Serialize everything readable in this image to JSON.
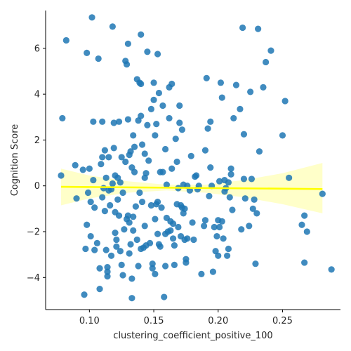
{
  "chart_data": {
    "type": "scatter",
    "title": "",
    "xlabel": "clustering_coefficient_positive_100",
    "ylabel": "Cognition Score",
    "xlim": [
      0.066,
      0.295
    ],
    "ylim": [
      -5.4,
      7.65
    ],
    "xticks": [
      "0.10",
      "0.15",
      "0.20",
      "0.25"
    ],
    "yticks": [
      "−4",
      "−2",
      "0",
      "2",
      "4",
      "6"
    ],
    "grid": false,
    "legend": "none",
    "colors": {
      "points": "#1f77b4",
      "regression_line": "#ffff00",
      "confidence_band": "#ffffc0"
    },
    "regression": {
      "x_start": 0.078,
      "y_start": -0.04,
      "x_end": 0.281,
      "y_end": -0.14
    },
    "confidence_band": {
      "x": [
        0.078,
        0.1,
        0.13,
        0.16,
        0.19,
        0.22,
        0.25,
        0.281
      ],
      "lower": [
        -0.85,
        -0.55,
        -0.3,
        -0.2,
        -0.3,
        -0.5,
        -0.8,
        -1.2
      ],
      "upper": [
        0.75,
        0.45,
        0.2,
        0.05,
        0.05,
        0.25,
        0.55,
        1.0
      ]
    },
    "points": [
      {
        "x": 0.078,
        "y": 0.45
      },
      {
        "x": 0.079,
        "y": 2.95
      },
      {
        "x": 0.082,
        "y": 6.35
      },
      {
        "x": 0.089,
        "y": 0.9
      },
      {
        "x": 0.09,
        "y": -0.55
      },
      {
        "x": 0.095,
        "y": 0.7
      },
      {
        "x": 0.096,
        "y": -4.75
      },
      {
        "x": 0.097,
        "y": -2.75
      },
      {
        "x": 0.098,
        "y": 5.8
      },
      {
        "x": 0.098,
        "y": -1.7
      },
      {
        "x": 0.099,
        "y": -0.3
      },
      {
        "x": 0.1,
        "y": 0.75
      },
      {
        "x": 0.101,
        "y": -2.2
      },
      {
        "x": 0.101,
        "y": -0.7
      },
      {
        "x": 0.102,
        "y": 7.35
      },
      {
        "x": 0.103,
        "y": 2.8
      },
      {
        "x": 0.103,
        "y": 0.25
      },
      {
        "x": 0.104,
        "y": -2.8
      },
      {
        "x": 0.104,
        "y": -0.95
      },
      {
        "x": 0.106,
        "y": -2.5
      },
      {
        "x": 0.107,
        "y": 5.55
      },
      {
        "x": 0.108,
        "y": -3.6
      },
      {
        "x": 0.108,
        "y": -4.5
      },
      {
        "x": 0.109,
        "y": 0.95
      },
      {
        "x": 0.11,
        "y": 1.25
      },
      {
        "x": 0.11,
        "y": -0.5
      },
      {
        "x": 0.11,
        "y": 2.8
      },
      {
        "x": 0.111,
        "y": -0.1
      },
      {
        "x": 0.112,
        "y": 1.55
      },
      {
        "x": 0.112,
        "y": -1.1
      },
      {
        "x": 0.113,
        "y": -2.8
      },
      {
        "x": 0.113,
        "y": 0.35
      },
      {
        "x": 0.114,
        "y": -3.55
      },
      {
        "x": 0.114,
        "y": -3.75
      },
      {
        "x": 0.114,
        "y": -3.95
      },
      {
        "x": 0.115,
        "y": 1.25
      },
      {
        "x": 0.115,
        "y": -0.2
      },
      {
        "x": 0.116,
        "y": -0.85
      },
      {
        "x": 0.117,
        "y": -0.15
      },
      {
        "x": 0.117,
        "y": -3.05
      },
      {
        "x": 0.118,
        "y": 6.95
      },
      {
        "x": 0.118,
        "y": 0.1
      },
      {
        "x": 0.119,
        "y": 1.65
      },
      {
        "x": 0.119,
        "y": 2.75
      },
      {
        "x": 0.12,
        "y": -2.05
      },
      {
        "x": 0.12,
        "y": -1.15
      },
      {
        "x": 0.12,
        "y": 0.45
      },
      {
        "x": 0.121,
        "y": -2.35
      },
      {
        "x": 0.121,
        "y": -2.65
      },
      {
        "x": 0.122,
        "y": -0.6
      },
      {
        "x": 0.122,
        "y": 0.35
      },
      {
        "x": 0.123,
        "y": 2.8
      },
      {
        "x": 0.123,
        "y": -1.3
      },
      {
        "x": 0.124,
        "y": -2.85
      },
      {
        "x": 0.124,
        "y": 0.15
      },
      {
        "x": 0.125,
        "y": 1.25
      },
      {
        "x": 0.125,
        "y": -3.45
      },
      {
        "x": 0.126,
        "y": -3.9
      },
      {
        "x": 0.126,
        "y": -0.3
      },
      {
        "x": 0.127,
        "y": -1.9
      },
      {
        "x": 0.128,
        "y": 5.45
      },
      {
        "x": 0.128,
        "y": 1.05
      },
      {
        "x": 0.129,
        "y": -1.45
      },
      {
        "x": 0.129,
        "y": 5.3
      },
      {
        "x": 0.13,
        "y": -1.3
      },
      {
        "x": 0.13,
        "y": 6.2
      },
      {
        "x": 0.13,
        "y": 2.9
      },
      {
        "x": 0.131,
        "y": -2.95
      },
      {
        "x": 0.131,
        "y": 1.35
      },
      {
        "x": 0.131,
        "y": -1.6
      },
      {
        "x": 0.132,
        "y": 1.5
      },
      {
        "x": 0.132,
        "y": -2.55
      },
      {
        "x": 0.133,
        "y": -4.9
      },
      {
        "x": 0.133,
        "y": -4.05
      },
      {
        "x": 0.133,
        "y": 0.8
      },
      {
        "x": 0.134,
        "y": 2.2
      },
      {
        "x": 0.134,
        "y": -1.95
      },
      {
        "x": 0.134,
        "y": -1.35
      },
      {
        "x": 0.135,
        "y": 0.6
      },
      {
        "x": 0.135,
        "y": 1.7
      },
      {
        "x": 0.136,
        "y": -0.9
      },
      {
        "x": 0.137,
        "y": 4.65
      },
      {
        "x": 0.137,
        "y": -2.35
      },
      {
        "x": 0.138,
        "y": 2.85
      },
      {
        "x": 0.138,
        "y": -3.5
      },
      {
        "x": 0.139,
        "y": 4.5
      },
      {
        "x": 0.139,
        "y": -0.3
      },
      {
        "x": 0.14,
        "y": 6.6
      },
      {
        "x": 0.14,
        "y": 3.05
      },
      {
        "x": 0.14,
        "y": -2.75
      },
      {
        "x": 0.14,
        "y": 4.45
      },
      {
        "x": 0.141,
        "y": 1.8
      },
      {
        "x": 0.141,
        "y": -0.7
      },
      {
        "x": 0.142,
        "y": -2.7
      },
      {
        "x": 0.143,
        "y": 0.35
      },
      {
        "x": 0.143,
        "y": 1.4
      },
      {
        "x": 0.143,
        "y": -1.75
      },
      {
        "x": 0.144,
        "y": 0.55
      },
      {
        "x": 0.144,
        "y": -2.6
      },
      {
        "x": 0.145,
        "y": 5.85
      },
      {
        "x": 0.145,
        "y": 2.65
      },
      {
        "x": 0.146,
        "y": 1.1
      },
      {
        "x": 0.147,
        "y": -2.5
      },
      {
        "x": 0.148,
        "y": 3.35
      },
      {
        "x": 0.148,
        "y": -0.85
      },
      {
        "x": 0.149,
        "y": -3.6
      },
      {
        "x": 0.149,
        "y": -3.4
      },
      {
        "x": 0.15,
        "y": 4.5
      },
      {
        "x": 0.15,
        "y": 3.75
      },
      {
        "x": 0.151,
        "y": 2.2
      },
      {
        "x": 0.151,
        "y": -1.45
      },
      {
        "x": 0.151,
        "y": -3.85
      },
      {
        "x": 0.152,
        "y": -0.8
      },
      {
        "x": 0.152,
        "y": 2.7
      },
      {
        "x": 0.153,
        "y": 5.75
      },
      {
        "x": 0.153,
        "y": -2.1
      },
      {
        "x": 0.153,
        "y": -0.7
      },
      {
        "x": 0.154,
        "y": 4.05
      },
      {
        "x": 0.154,
        "y": -2.55
      },
      {
        "x": 0.155,
        "y": 0.6
      },
      {
        "x": 0.155,
        "y": -2.65
      },
      {
        "x": 0.156,
        "y": -0.95
      },
      {
        "x": 0.157,
        "y": 3.5
      },
      {
        "x": 0.157,
        "y": 0.6
      },
      {
        "x": 0.158,
        "y": -4.85
      },
      {
        "x": 0.159,
        "y": 1.6
      },
      {
        "x": 0.159,
        "y": -2.1
      },
      {
        "x": 0.159,
        "y": -3.5
      },
      {
        "x": 0.16,
        "y": 0.05
      },
      {
        "x": 0.16,
        "y": -1.4
      },
      {
        "x": 0.161,
        "y": -2.0
      },
      {
        "x": 0.162,
        "y": 2.95
      },
      {
        "x": 0.162,
        "y": 4.3
      },
      {
        "x": 0.163,
        "y": -1.95
      },
      {
        "x": 0.163,
        "y": -1.55
      },
      {
        "x": 0.164,
        "y": 4.45
      },
      {
        "x": 0.164,
        "y": 0.75
      },
      {
        "x": 0.165,
        "y": -2.3
      },
      {
        "x": 0.165,
        "y": -1.65
      },
      {
        "x": 0.166,
        "y": -2.6
      },
      {
        "x": 0.166,
        "y": -3.45
      },
      {
        "x": 0.167,
        "y": 2.05
      },
      {
        "x": 0.168,
        "y": 1.05
      },
      {
        "x": 0.168,
        "y": -0.8
      },
      {
        "x": 0.169,
        "y": -1.8
      },
      {
        "x": 0.169,
        "y": -0.1
      },
      {
        "x": 0.17,
        "y": 2.75
      },
      {
        "x": 0.17,
        "y": 3.5
      },
      {
        "x": 0.171,
        "y": -0.85
      },
      {
        "x": 0.171,
        "y": -2.2
      },
      {
        "x": 0.172,
        "y": 2.45
      },
      {
        "x": 0.172,
        "y": -0.95
      },
      {
        "x": 0.173,
        "y": -1.2
      },
      {
        "x": 0.173,
        "y": 0.05
      },
      {
        "x": 0.174,
        "y": -1.0
      },
      {
        "x": 0.174,
        "y": -2.35
      },
      {
        "x": 0.175,
        "y": -3.35
      },
      {
        "x": 0.175,
        "y": -3.2
      },
      {
        "x": 0.176,
        "y": -2.3
      },
      {
        "x": 0.176,
        "y": 0.0
      },
      {
        "x": 0.178,
        "y": -0.2
      },
      {
        "x": 0.179,
        "y": 1.3
      },
      {
        "x": 0.18,
        "y": -1.6
      },
      {
        "x": 0.181,
        "y": -2.35
      },
      {
        "x": 0.182,
        "y": 0.4
      },
      {
        "x": 0.183,
        "y": 0.45
      },
      {
        "x": 0.184,
        "y": -0.15
      },
      {
        "x": 0.185,
        "y": 0.0
      },
      {
        "x": 0.187,
        "y": -3.85
      },
      {
        "x": 0.189,
        "y": -1.75
      },
      {
        "x": 0.19,
        "y": 1.55
      },
      {
        "x": 0.19,
        "y": -1.5
      },
      {
        "x": 0.191,
        "y": 4.7
      },
      {
        "x": 0.192,
        "y": 2.5
      },
      {
        "x": 0.193,
        "y": -0.45
      },
      {
        "x": 0.194,
        "y": 0.8
      },
      {
        "x": 0.194,
        "y": 2.8
      },
      {
        "x": 0.195,
        "y": 0.0
      },
      {
        "x": 0.196,
        "y": -3.75
      },
      {
        "x": 0.197,
        "y": -1.8
      },
      {
        "x": 0.198,
        "y": -2.85
      },
      {
        "x": 0.199,
        "y": -2.2
      },
      {
        "x": 0.2,
        "y": -1.5
      },
      {
        "x": 0.2,
        "y": -3.05
      },
      {
        "x": 0.201,
        "y": 0.2
      },
      {
        "x": 0.201,
        "y": -1.8
      },
      {
        "x": 0.202,
        "y": 4.5
      },
      {
        "x": 0.203,
        "y": 3.85
      },
      {
        "x": 0.203,
        "y": -1.55
      },
      {
        "x": 0.204,
        "y": -2.3
      },
      {
        "x": 0.205,
        "y": 0.25
      },
      {
        "x": 0.205,
        "y": -0.25
      },
      {
        "x": 0.206,
        "y": -0.1
      },
      {
        "x": 0.207,
        "y": -3.05
      },
      {
        "x": 0.208,
        "y": 0.15
      },
      {
        "x": 0.208,
        "y": -2.75
      },
      {
        "x": 0.209,
        "y": -0.5
      },
      {
        "x": 0.21,
        "y": 0.5
      },
      {
        "x": 0.21,
        "y": 0.75
      },
      {
        "x": 0.211,
        "y": -1.05
      },
      {
        "x": 0.212,
        "y": 2.95
      },
      {
        "x": 0.214,
        "y": 4.4
      },
      {
        "x": 0.217,
        "y": 3.35
      },
      {
        "x": 0.218,
        "y": -1.9
      },
      {
        "x": 0.219,
        "y": 6.9
      },
      {
        "x": 0.22,
        "y": 2.25
      },
      {
        "x": 0.22,
        "y": 0.3
      },
      {
        "x": 0.221,
        "y": -0.55
      },
      {
        "x": 0.224,
        "y": -1.75
      },
      {
        "x": 0.225,
        "y": 4.1
      },
      {
        "x": 0.226,
        "y": 0.3
      },
      {
        "x": 0.227,
        "y": -1.0
      },
      {
        "x": 0.228,
        "y": -0.6
      },
      {
        "x": 0.229,
        "y": -3.4
      },
      {
        "x": 0.23,
        "y": -1.2
      },
      {
        "x": 0.231,
        "y": 6.85
      },
      {
        "x": 0.232,
        "y": 1.5
      },
      {
        "x": 0.235,
        "y": 4.3
      },
      {
        "x": 0.237,
        "y": 5.4
      },
      {
        "x": 0.241,
        "y": 5.9
      },
      {
        "x": 0.25,
        "y": 2.2
      },
      {
        "x": 0.252,
        "y": 3.7
      },
      {
        "x": 0.255,
        "y": 0.35
      },
      {
        "x": 0.265,
        "y": -1.7
      },
      {
        "x": 0.267,
        "y": -1.3
      },
      {
        "x": 0.269,
        "y": -2.0
      },
      {
        "x": 0.267,
        "y": -3.35
      },
      {
        "x": 0.281,
        "y": -0.35
      },
      {
        "x": 0.288,
        "y": -3.65
      }
    ]
  }
}
